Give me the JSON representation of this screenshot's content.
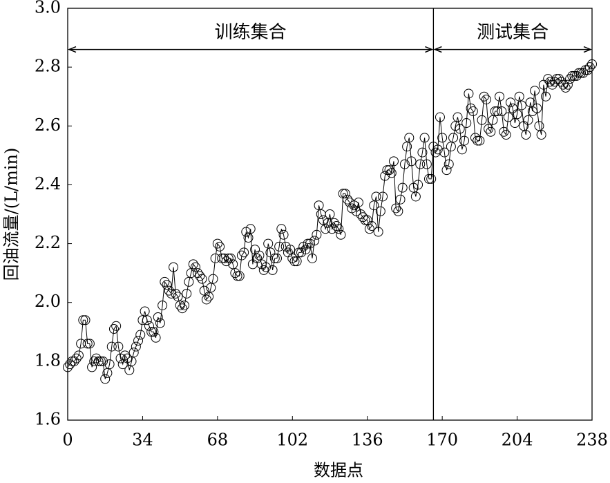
{
  "chart_data": {
    "type": "line",
    "x_label": "数据点",
    "y_label": "回油流量/(L/min)",
    "color": "#000000",
    "marker": "circle",
    "values": [
      1.78,
      1.79,
      1.8,
      1.8,
      1.81,
      1.82,
      1.86,
      1.94,
      1.94,
      1.86,
      1.86,
      1.78,
      1.8,
      1.81,
      1.8,
      1.8,
      1.8,
      1.74,
      1.76,
      1.79,
      1.85,
      1.91,
      1.92,
      1.85,
      1.81,
      1.79,
      1.82,
      1.81,
      1.77,
      1.8,
      1.83,
      1.85,
      1.87,
      1.89,
      1.94,
      1.97,
      1.94,
      1.92,
      1.9,
      1.9,
      1.88,
      1.95,
      1.93,
      1.99,
      2.07,
      2.06,
      2.04,
      2.03,
      2.12,
      2.03,
      2.02,
      1.99,
      1.98,
      1.99,
      2.03,
      2.07,
      2.1,
      2.13,
      2.12,
      2.1,
      2.09,
      2.08,
      2.04,
      2.01,
      2.02,
      2.05,
      2.08,
      2.15,
      2.2,
      2.19,
      2.15,
      2.15,
      2.14,
      2.15,
      2.15,
      2.13,
      2.1,
      2.09,
      2.09,
      2.16,
      2.17,
      2.24,
      2.22,
      2.25,
      2.13,
      2.18,
      2.15,
      2.16,
      2.13,
      2.11,
      2.12,
      2.2,
      2.17,
      2.11,
      2.15,
      2.15,
      2.19,
      2.25,
      2.23,
      2.19,
      2.17,
      2.18,
      2.15,
      2.14,
      2.14,
      2.17,
      2.17,
      2.19,
      2.18,
      2.2,
      2.2,
      2.15,
      2.21,
      2.23,
      2.33,
      2.3,
      2.28,
      2.25,
      2.27,
      2.3,
      2.25,
      2.27,
      2.26,
      2.25,
      2.23,
      2.37,
      2.37,
      2.35,
      2.34,
      2.32,
      2.33,
      2.31,
      2.34,
      2.3,
      2.29,
      2.28,
      2.28,
      2.25,
      2.26,
      2.33,
      2.36,
      2.24,
      2.31,
      2.36,
      2.43,
      2.45,
      2.45,
      2.44,
      2.48,
      2.32,
      2.31,
      2.35,
      2.39,
      2.47,
      2.53,
      2.56,
      2.48,
      2.39,
      2.36,
      2.4,
      2.47,
      2.51,
      2.56,
      2.47,
      2.42,
      2.42,
      2.53,
      2.51,
      2.52,
      2.63,
      2.56,
      2.51,
      2.45,
      2.47,
      2.53,
      2.56,
      2.6,
      2.63,
      2.59,
      2.52,
      2.55,
      2.61,
      2.71,
      2.66,
      2.65,
      2.56,
      2.55,
      2.55,
      2.62,
      2.7,
      2.69,
      2.59,
      2.58,
      2.62,
      2.65,
      2.65,
      2.7,
      2.65,
      2.58,
      2.57,
      2.63,
      2.68,
      2.66,
      2.61,
      2.64,
      2.7,
      2.67,
      2.6,
      2.57,
      2.62,
      2.68,
      2.65,
      2.72,
      2.66,
      2.6,
      2.57,
      2.74,
      2.7,
      2.76,
      2.75,
      2.74,
      2.75,
      2.76,
      2.76,
      2.75,
      2.74,
      2.73,
      2.74,
      2.76,
      2.77,
      2.77,
      2.77,
      2.78,
      2.78,
      2.78,
      2.79,
      2.79,
      2.8,
      2.81
    ],
    "xlim": [
      0,
      238
    ],
    "xticks": [
      0,
      34,
      68,
      102,
      136,
      170,
      204,
      238
    ],
    "ylim": [
      1.6,
      3.0
    ],
    "yticks": [
      1.6,
      1.8,
      {
        "value": 2,
        "label": "2.0"
      },
      2.2,
      2.4,
      2.6,
      2.8,
      {
        "value": 3,
        "label": "3.0"
      }
    ],
    "divider_x": 166,
    "arrow_y": 2.86,
    "annotations": [
      {
        "text": "训练集合"
      },
      {
        "text": "测试集合"
      }
    ]
  }
}
